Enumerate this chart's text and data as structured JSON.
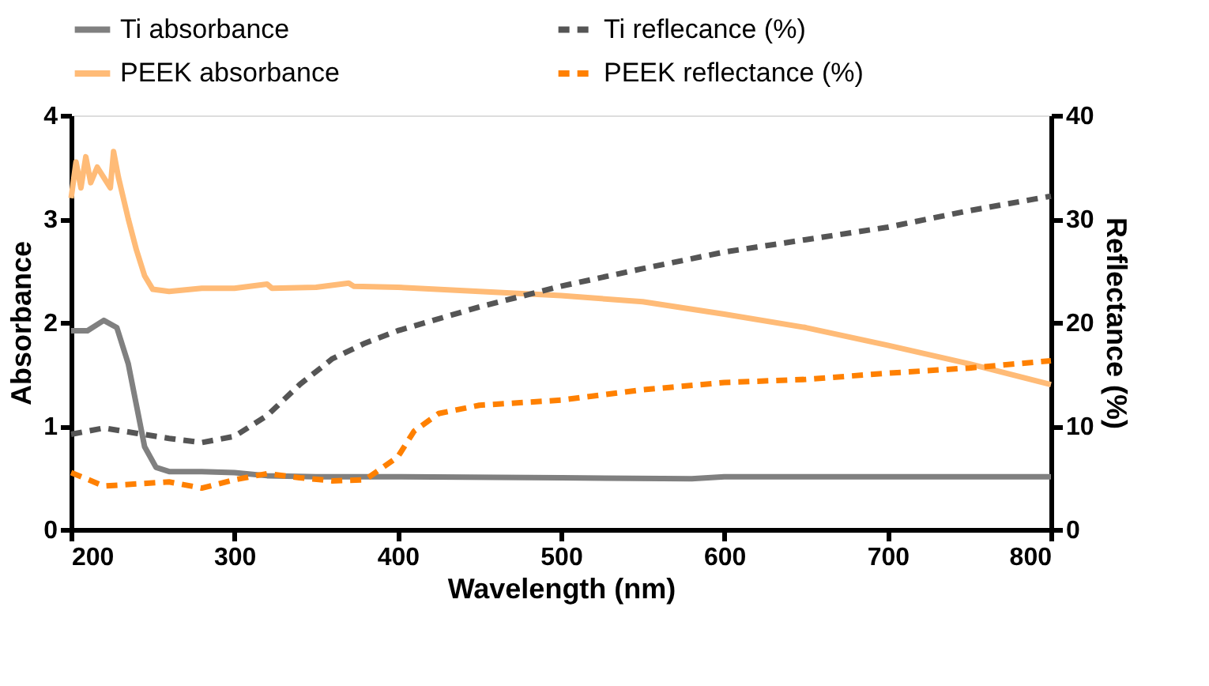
{
  "chart_data": {
    "type": "line",
    "xlabel": "Wavelength (nm)",
    "ylabel": "Absorbance",
    "y2label": "Reflectance (%)",
    "xlim": [
      200,
      800
    ],
    "xticks": [
      200,
      300,
      400,
      500,
      600,
      700,
      800
    ],
    "ylim": [
      0,
      4
    ],
    "yticks": [
      0,
      1,
      2,
      3,
      4
    ],
    "y2lim": [
      0,
      40
    ],
    "y2ticks": [
      0,
      10,
      20,
      30,
      40
    ],
    "grid": false,
    "legend": "top",
    "marker": "none",
    "series": [
      {
        "name": "Ti absorbance",
        "color": "#808080",
        "line_style": "solid",
        "x": [
          200,
          210,
          220,
          228,
          235,
          240,
          245,
          252,
          260,
          280,
          300,
          320,
          350,
          400,
          500,
          580,
          600,
          700,
          800
        ],
        "values": [
          1.92,
          1.92,
          2.02,
          1.95,
          1.6,
          1.2,
          0.8,
          0.6,
          0.56,
          0.56,
          0.55,
          0.52,
          0.51,
          0.51,
          0.5,
          0.49,
          0.51,
          0.51,
          0.51
        ]
      },
      {
        "name": "Ti reflecance (%)",
        "color": "#555555",
        "line_style": "dashed",
        "axis": "y2",
        "x": [
          200,
          220,
          240,
          260,
          280,
          300,
          320,
          340,
          360,
          380,
          400,
          450,
          500,
          550,
          600,
          650,
          700,
          750,
          800
        ],
        "values": [
          9.2,
          9.8,
          9.3,
          8.8,
          8.4,
          9.0,
          11,
          14,
          16.5,
          18.0,
          19.2,
          21.5,
          23.5,
          25.2,
          26.8,
          28,
          29.2,
          30.8,
          32.2
        ]
      },
      {
        "name": "PEEK absorbance",
        "color": "#ffbb77",
        "line_style": "solid",
        "x": [
          200,
          203,
          206,
          209,
          212,
          216,
          220,
          224,
          226,
          229,
          235,
          240,
          245,
          250,
          260,
          280,
          300,
          320,
          323,
          350,
          370,
          373,
          400,
          450,
          500,
          550,
          600,
          650,
          700,
          750,
          800
        ],
        "values": [
          3.2,
          3.55,
          3.3,
          3.6,
          3.35,
          3.5,
          3.4,
          3.3,
          3.65,
          3.4,
          3.0,
          2.7,
          2.45,
          2.32,
          2.3,
          2.33,
          2.33,
          2.37,
          2.33,
          2.34,
          2.38,
          2.35,
          2.34,
          2.3,
          2.26,
          2.2,
          2.08,
          1.95,
          1.78,
          1.6,
          1.4
        ]
      },
      {
        "name": "PEEK reflectance (%)",
        "color": "#ff8000",
        "line_style": "dashed",
        "axis": "y2",
        "x": [
          200,
          220,
          240,
          260,
          280,
          300,
          320,
          340,
          360,
          380,
          400,
          410,
          425,
          450,
          500,
          550,
          600,
          650,
          700,
          750,
          800
        ],
        "values": [
          5.5,
          4.2,
          4.4,
          4.6,
          4.0,
          4.8,
          5.4,
          5.0,
          4.7,
          4.8,
          7,
          9.5,
          11.2,
          12.0,
          12.5,
          13.5,
          14.2,
          14.5,
          15.1,
          15.6,
          16.3
        ]
      }
    ]
  }
}
